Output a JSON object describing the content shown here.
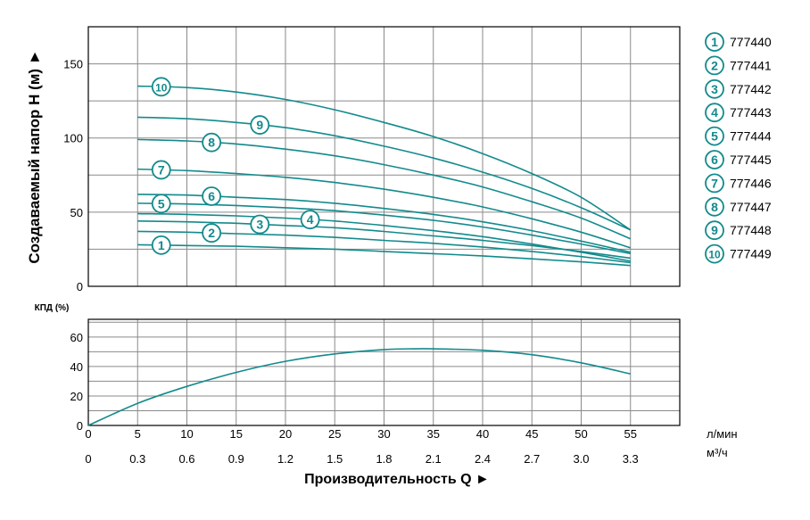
{
  "colors": {
    "curve": "#138a8c",
    "grid": "#8a8a8a",
    "text": "#000000"
  },
  "chart_data": [
    {
      "type": "line",
      "panel": "head",
      "ylabel": "Создаваемый напор Н (м) ►",
      "ylim": [
        0,
        175
      ],
      "yticks": [
        0,
        50,
        100,
        150
      ],
      "xlim": [
        0,
        60
      ],
      "x_grid_every": 5,
      "x": [
        5,
        10,
        15,
        20,
        25,
        30,
        35,
        40,
        45,
        50,
        55
      ],
      "grid": true,
      "legend_position": "right",
      "series": [
        {
          "name": "777440",
          "label": "1",
          "values": [
            28,
            27.5,
            27,
            26,
            25,
            23.5,
            22,
            20.5,
            18.5,
            16.5,
            14
          ]
        },
        {
          "name": "777441",
          "label": "2",
          "values": [
            37,
            36.5,
            35.5,
            34.5,
            33,
            31,
            29,
            26.5,
            23.5,
            20,
            16
          ]
        },
        {
          "name": "777442",
          "label": "3",
          "values": [
            44,
            43.5,
            42.5,
            41,
            39.5,
            37,
            34,
            31,
            27.5,
            23.5,
            19
          ]
        },
        {
          "name": "777443",
          "label": "4",
          "values": [
            49,
            48.5,
            47.5,
            46,
            44,
            41,
            37.5,
            33.5,
            28.5,
            23,
            17
          ]
        },
        {
          "name": "777444",
          "label": "5",
          "values": [
            56,
            55.5,
            54.5,
            53,
            51,
            48,
            44.5,
            40,
            34.5,
            28.5,
            22
          ]
        },
        {
          "name": "777445",
          "label": "6",
          "values": [
            62,
            61.5,
            60,
            58.5,
            56,
            52.5,
            48.5,
            43.5,
            37.5,
            30.5,
            23
          ]
        },
        {
          "name": "777446",
          "label": "7",
          "values": [
            79,
            78,
            76,
            73.5,
            70,
            65.5,
            60,
            53.5,
            45.5,
            36.5,
            26
          ]
        },
        {
          "name": "777447",
          "label": "8",
          "values": [
            99,
            98,
            96,
            92.5,
            88,
            82,
            75,
            67,
            57,
            46,
            32
          ]
        },
        {
          "name": "777448",
          "label": "9",
          "values": [
            114,
            113,
            110.5,
            107,
            101.5,
            94.5,
            86.5,
            77,
            66,
            53,
            38
          ]
        },
        {
          "name": "777449",
          "label": "10",
          "values": [
            135,
            134,
            131,
            126,
            119,
            110.5,
            101,
            89.5,
            76,
            60,
            38
          ]
        }
      ]
    },
    {
      "type": "line",
      "panel": "efficiency",
      "ylabel": "КПД (%)",
      "ylim": [
        0,
        72
      ],
      "yticks": [
        0,
        20,
        40,
        60
      ],
      "xlim": [
        0,
        60
      ],
      "x_grid_every": 5,
      "xticks_lpm": [
        0,
        5,
        10,
        15,
        20,
        25,
        30,
        35,
        40,
        45,
        50,
        55
      ],
      "xticks_m3h": [
        "0",
        "0.3",
        "0.6",
        "0.9",
        "1.2",
        "1.5",
        "1.8",
        "2.1",
        "2.4",
        "2.7",
        "3.0",
        "3.3"
      ],
      "xunit_lpm": "л/мин",
      "xunit_m3h": "м³/ч",
      "xlabel": "Производительность Q ►",
      "grid": true,
      "series": [
        {
          "x": [
            0,
            5,
            10,
            15,
            20,
            25,
            30,
            33,
            35,
            40,
            45,
            50,
            55
          ],
          "values": [
            0,
            15,
            26.5,
            36,
            43.5,
            48.5,
            51.5,
            52,
            52,
            51,
            48,
            42.5,
            35
          ]
        }
      ]
    }
  ]
}
